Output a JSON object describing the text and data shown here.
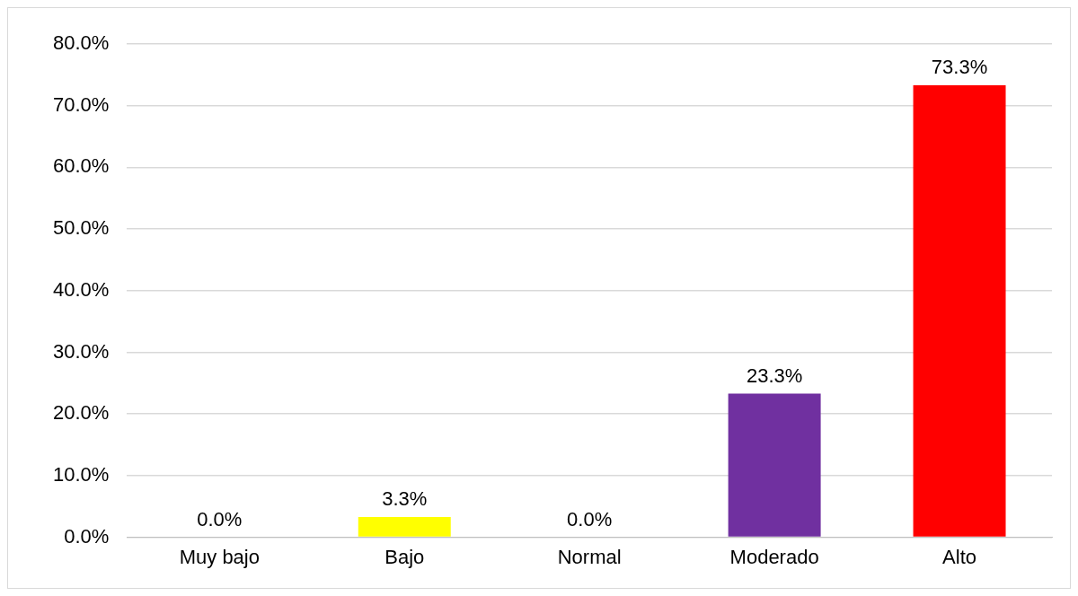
{
  "chart_data": {
    "type": "bar",
    "categories": [
      "Muy bajo",
      "Bajo",
      "Normal",
      "Moderado",
      "Alto"
    ],
    "values": [
      0.0,
      3.3,
      0.0,
      23.3,
      73.3
    ],
    "colors": [
      "#4472c4",
      "#ffff00",
      "#70ad47",
      "#7030a0",
      "#ff0000"
    ],
    "value_labels": [
      "0.0%",
      "3.3%",
      "0.0%",
      "23.3%",
      "73.3%"
    ],
    "ylim": [
      0,
      80
    ],
    "yticks": [
      {
        "value": 0,
        "label": "0.0%"
      },
      {
        "value": 10,
        "label": "10.0%"
      },
      {
        "value": 20,
        "label": "20.0%"
      },
      {
        "value": 30,
        "label": "30.0%"
      },
      {
        "value": 40,
        "label": "40.0%"
      },
      {
        "value": 50,
        "label": "50.0%"
      },
      {
        "value": 60,
        "label": "60.0%"
      },
      {
        "value": 70,
        "label": "70.0%"
      },
      {
        "value": 80,
        "label": "80.0%"
      }
    ],
    "grid": "y",
    "legend": false
  }
}
